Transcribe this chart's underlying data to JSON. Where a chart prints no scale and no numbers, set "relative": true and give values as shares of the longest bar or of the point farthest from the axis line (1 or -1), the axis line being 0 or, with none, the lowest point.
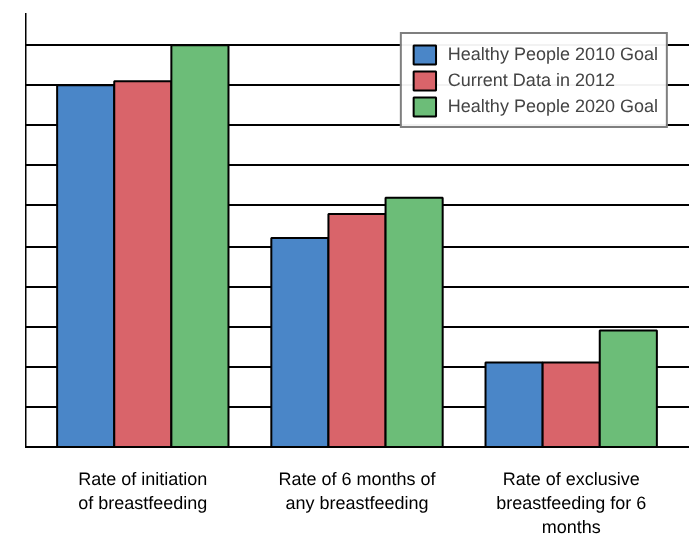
{
  "chart_data": {
    "type": "bar",
    "relative": true,
    "grid": "y",
    "legend": "top right",
    "categories": [
      "Rate of initiation of breastfeeding",
      "Rate of 6 months of any breastfeeding",
      "Rate of exclusive breastfeeding for 6 months"
    ],
    "series": [
      {
        "name": "Healthy People 2010 Goal",
        "color": "#4a86c8",
        "values": [
          0.9,
          0.52,
          0.21
        ]
      },
      {
        "name": "Current Data in 2012",
        "color": "#d9646a",
        "values": [
          0.91,
          0.58,
          0.21
        ]
      },
      {
        "name": "Healthy People 2020 Goal",
        "color": "#6cbd78",
        "values": [
          1,
          0.62,
          0.29
        ]
      }
    ]
  }
}
